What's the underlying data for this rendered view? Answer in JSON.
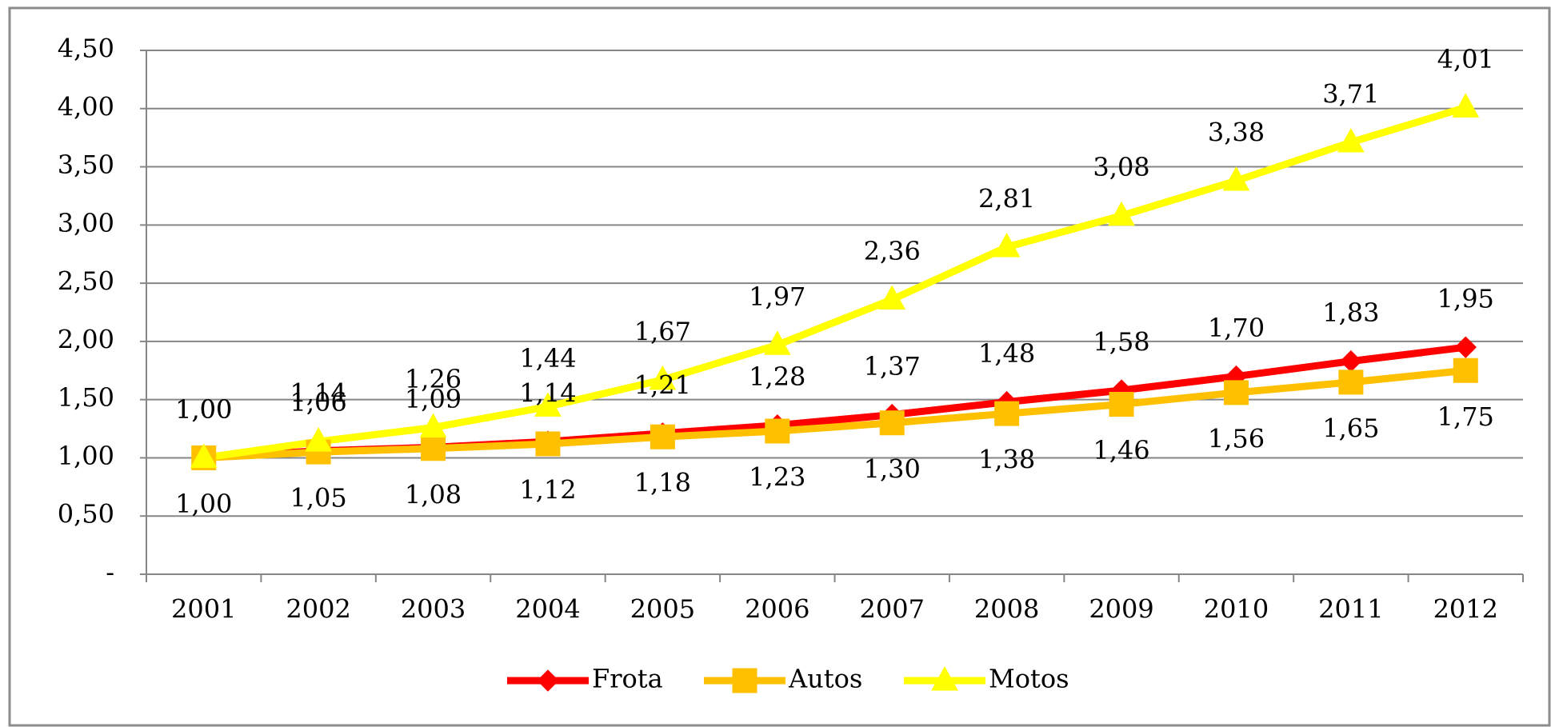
{
  "chart_data": {
    "type": "line",
    "categories": [
      "2001",
      "2002",
      "2003",
      "2004",
      "2005",
      "2006",
      "2007",
      "2008",
      "2009",
      "2010",
      "2011",
      "2012"
    ],
    "series": [
      {
        "name": "Frota",
        "color": "#ff0000",
        "marker": "diamond",
        "values": [
          1.0,
          1.06,
          1.09,
          1.14,
          1.21,
          1.28,
          1.37,
          1.48,
          1.58,
          1.7,
          1.83,
          1.95
        ],
        "value_labels": [
          "1,00",
          "1,06",
          "1,09",
          "1,14",
          "1,21",
          "1,28",
          "1,37",
          "1,48",
          "1,58",
          "1,70",
          "1,83",
          "1,95"
        ]
      },
      {
        "name": "Autos",
        "color": "#ffc000",
        "marker": "square",
        "values": [
          1.0,
          1.05,
          1.08,
          1.12,
          1.18,
          1.23,
          1.3,
          1.38,
          1.46,
          1.56,
          1.65,
          1.75
        ],
        "value_labels": [
          "1,00",
          "1,05",
          "1,08",
          "1,12",
          "1,18",
          "1,23",
          "1,30",
          "1,38",
          "1,46",
          "1,56",
          "1,65",
          "1,75"
        ]
      },
      {
        "name": "Motos",
        "color": "#ffff00",
        "marker": "triangle",
        "values": [
          1.0,
          1.14,
          1.26,
          1.44,
          1.67,
          1.97,
          2.36,
          2.81,
          3.08,
          3.38,
          3.71,
          4.01
        ],
        "value_labels": [
          "1,00",
          "1,14",
          "1,26",
          "1,44",
          "1,67",
          "1,97",
          "2,36",
          "2,81",
          "3,08",
          "3,38",
          "3,71",
          "4,01"
        ]
      }
    ],
    "ylim": [
      0,
      4.5
    ],
    "yticks": [
      {
        "value": 0,
        "label": "-"
      },
      {
        "value": 0.5,
        "label": "0,50"
      },
      {
        "value": 1,
        "label": "1,00"
      },
      {
        "value": 1.5,
        "label": "1,50"
      },
      {
        "value": 2,
        "label": "2,00"
      },
      {
        "value": 2.5,
        "label": "2,50"
      },
      {
        "value": 3,
        "label": "3,00"
      },
      {
        "value": 3.5,
        "label": "3,50"
      },
      {
        "value": 4,
        "label": "4,00"
      },
      {
        "value": 4.5,
        "label": "4,50"
      }
    ],
    "grid": true,
    "legend": "bottom"
  }
}
